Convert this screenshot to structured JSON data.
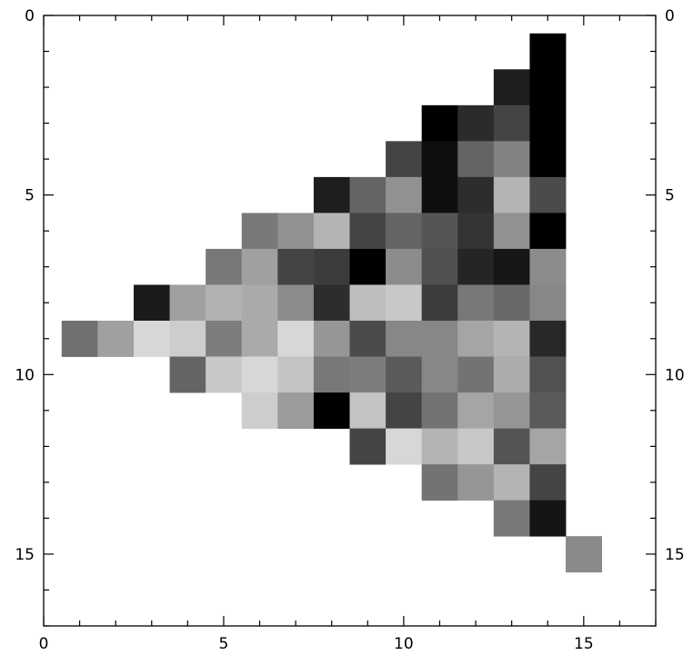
{
  "chart_data": {
    "type": "heatmap",
    "title": "",
    "xlabel": "",
    "ylabel": "",
    "colormap": "grayscale",
    "xlim": [
      0,
      17
    ],
    "ylim": [
      17,
      0
    ],
    "x_ticks": [
      0,
      5,
      10,
      15
    ],
    "y_ticks": [
      0,
      5,
      10,
      15
    ],
    "x_tick_labels": [
      "0",
      "5",
      "10",
      "15"
    ],
    "y_tick_labels": [
      "0",
      "5",
      "10",
      "15"
    ],
    "y_tick_labels_right": [
      "0",
      "5",
      "10",
      "15"
    ],
    "grid": false,
    "cells": [
      {
        "x": 14,
        "y": 1,
        "v": 0
      },
      {
        "x": 13,
        "y": 2,
        "v": 30
      },
      {
        "x": 14,
        "y": 2,
        "v": 0
      },
      {
        "x": 11,
        "y": 3,
        "v": 0
      },
      {
        "x": 12,
        "y": 3,
        "v": 43
      },
      {
        "x": 13,
        "y": 3,
        "v": 68
      },
      {
        "x": 14,
        "y": 3,
        "v": 0
      },
      {
        "x": 10,
        "y": 4,
        "v": 68
      },
      {
        "x": 11,
        "y": 4,
        "v": 14
      },
      {
        "x": 12,
        "y": 4,
        "v": 100
      },
      {
        "x": 13,
        "y": 4,
        "v": 130
      },
      {
        "x": 14,
        "y": 4,
        "v": 0
      },
      {
        "x": 8,
        "y": 5,
        "v": 30
      },
      {
        "x": 9,
        "y": 5,
        "v": 100
      },
      {
        "x": 10,
        "y": 5,
        "v": 145
      },
      {
        "x": 11,
        "y": 5,
        "v": 14
      },
      {
        "x": 12,
        "y": 5,
        "v": 45
      },
      {
        "x": 13,
        "y": 5,
        "v": 180
      },
      {
        "x": 14,
        "y": 5,
        "v": 75
      },
      {
        "x": 6,
        "y": 6,
        "v": 120
      },
      {
        "x": 7,
        "y": 6,
        "v": 145
      },
      {
        "x": 8,
        "y": 6,
        "v": 180
      },
      {
        "x": 9,
        "y": 6,
        "v": 68
      },
      {
        "x": 10,
        "y": 6,
        "v": 100
      },
      {
        "x": 11,
        "y": 6,
        "v": 85
      },
      {
        "x": 12,
        "y": 6,
        "v": 52
      },
      {
        "x": 13,
        "y": 6,
        "v": 145
      },
      {
        "x": 14,
        "y": 6,
        "v": 0
      },
      {
        "x": 5,
        "y": 7,
        "v": 120
      },
      {
        "x": 6,
        "y": 7,
        "v": 160
      },
      {
        "x": 7,
        "y": 7,
        "v": 68
      },
      {
        "x": 8,
        "y": 7,
        "v": 60
      },
      {
        "x": 9,
        "y": 7,
        "v": 0
      },
      {
        "x": 10,
        "y": 7,
        "v": 140
      },
      {
        "x": 11,
        "y": 7,
        "v": 80
      },
      {
        "x": 12,
        "y": 7,
        "v": 37
      },
      {
        "x": 13,
        "y": 7,
        "v": 22
      },
      {
        "x": 14,
        "y": 7,
        "v": 140
      },
      {
        "x": 3,
        "y": 8,
        "v": 26
      },
      {
        "x": 4,
        "y": 8,
        "v": 160
      },
      {
        "x": 5,
        "y": 8,
        "v": 178
      },
      {
        "x": 6,
        "y": 8,
        "v": 170
      },
      {
        "x": 7,
        "y": 8,
        "v": 140
      },
      {
        "x": 8,
        "y": 8,
        "v": 45
      },
      {
        "x": 9,
        "y": 8,
        "v": 190
      },
      {
        "x": 10,
        "y": 8,
        "v": 200
      },
      {
        "x": 11,
        "y": 8,
        "v": 60
      },
      {
        "x": 12,
        "y": 8,
        "v": 120
      },
      {
        "x": 13,
        "y": 8,
        "v": 105
      },
      {
        "x": 14,
        "y": 8,
        "v": 135
      },
      {
        "x": 1,
        "y": 9,
        "v": 112
      },
      {
        "x": 2,
        "y": 9,
        "v": 160
      },
      {
        "x": 3,
        "y": 9,
        "v": 215
      },
      {
        "x": 4,
        "y": 9,
        "v": 205
      },
      {
        "x": 5,
        "y": 9,
        "v": 125
      },
      {
        "x": 6,
        "y": 9,
        "v": 170
      },
      {
        "x": 7,
        "y": 9,
        "v": 215
      },
      {
        "x": 8,
        "y": 9,
        "v": 150
      },
      {
        "x": 9,
        "y": 9,
        "v": 75
      },
      {
        "x": 10,
        "y": 9,
        "v": 135
      },
      {
        "x": 11,
        "y": 9,
        "v": 135
      },
      {
        "x": 12,
        "y": 9,
        "v": 165
      },
      {
        "x": 13,
        "y": 9,
        "v": 180
      },
      {
        "x": 14,
        "y": 9,
        "v": 40
      },
      {
        "x": 4,
        "y": 10,
        "v": 100
      },
      {
        "x": 5,
        "y": 10,
        "v": 200
      },
      {
        "x": 6,
        "y": 10,
        "v": 215
      },
      {
        "x": 7,
        "y": 10,
        "v": 195
      },
      {
        "x": 8,
        "y": 10,
        "v": 120
      },
      {
        "x": 9,
        "y": 10,
        "v": 125
      },
      {
        "x": 10,
        "y": 10,
        "v": 90
      },
      {
        "x": 11,
        "y": 10,
        "v": 135
      },
      {
        "x": 12,
        "y": 10,
        "v": 115
      },
      {
        "x": 13,
        "y": 10,
        "v": 172
      },
      {
        "x": 14,
        "y": 10,
        "v": 82
      },
      {
        "x": 6,
        "y": 11,
        "v": 205
      },
      {
        "x": 7,
        "y": 11,
        "v": 155
      },
      {
        "x": 8,
        "y": 11,
        "v": 0
      },
      {
        "x": 9,
        "y": 11,
        "v": 195
      },
      {
        "x": 10,
        "y": 11,
        "v": 68
      },
      {
        "x": 11,
        "y": 11,
        "v": 115
      },
      {
        "x": 12,
        "y": 11,
        "v": 165
      },
      {
        "x": 13,
        "y": 11,
        "v": 150
      },
      {
        "x": 14,
        "y": 11,
        "v": 90
      },
      {
        "x": 9,
        "y": 12,
        "v": 68
      },
      {
        "x": 10,
        "y": 12,
        "v": 215
      },
      {
        "x": 11,
        "y": 12,
        "v": 180
      },
      {
        "x": 12,
        "y": 12,
        "v": 200
      },
      {
        "x": 13,
        "y": 12,
        "v": 85
      },
      {
        "x": 14,
        "y": 12,
        "v": 165
      },
      {
        "x": 11,
        "y": 13,
        "v": 115
      },
      {
        "x": 12,
        "y": 13,
        "v": 150
      },
      {
        "x": 13,
        "y": 13,
        "v": 180
      },
      {
        "x": 14,
        "y": 13,
        "v": 68
      },
      {
        "x": 13,
        "y": 14,
        "v": 120
      },
      {
        "x": 14,
        "y": 14,
        "v": 20
      },
      {
        "x": 15,
        "y": 15,
        "v": 138
      }
    ]
  }
}
